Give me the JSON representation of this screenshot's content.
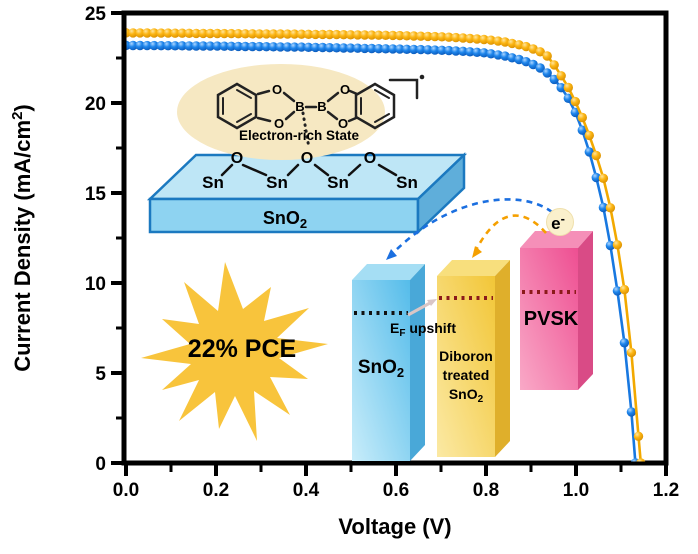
{
  "figure": {
    "description": "J-V curve of perovskite solar cells with diboron-treated SnO2 electron transport layer"
  },
  "chart_data": {
    "type": "line",
    "title": "",
    "xlabel": "Voltage (V)",
    "ylabel": "Current Density (mA/cm2)",
    "xlim": [
      0.0,
      1.2
    ],
    "ylim": [
      0,
      25
    ],
    "xticks": [
      0.0,
      0.2,
      0.4,
      0.6,
      0.8,
      1.0,
      1.2
    ],
    "xtick_labels": [
      "0.0",
      "0.2",
      "0.4",
      "0.6",
      "0.8",
      "1.0",
      "1.2"
    ],
    "x_minor_ticks": [
      0.1,
      0.3,
      0.5,
      0.7,
      0.9,
      1.1
    ],
    "yticks": [
      0,
      5,
      10,
      15,
      20,
      25
    ],
    "ytick_labels": [
      "0",
      "5",
      "10",
      "15",
      "20",
      "25"
    ],
    "y_minor_ticks": [
      2.5,
      7.5,
      12.5,
      17.5,
      22.5
    ],
    "grid": false,
    "legend": "none",
    "series": [
      {
        "name": "Pristine SnO2 (control, blue)",
        "line_color": "#1878E0",
        "gradient_id": "ballBlue",
        "marker_step_v": 0.0156,
        "jsc_mA_cm2": 23.2,
        "voc_V": 1.132,
        "points": [
          [
            0.0,
            23.2
          ],
          [
            0.1,
            23.18
          ],
          [
            0.2,
            23.16
          ],
          [
            0.3,
            23.13
          ],
          [
            0.4,
            23.1
          ],
          [
            0.5,
            23.05
          ],
          [
            0.6,
            23.0
          ],
          [
            0.65,
            22.97
          ],
          [
            0.7,
            22.93
          ],
          [
            0.75,
            22.87
          ],
          [
            0.8,
            22.78
          ],
          [
            0.84,
            22.62
          ],
          [
            0.88,
            22.38
          ],
          [
            0.9,
            22.2
          ],
          [
            0.92,
            21.95
          ],
          [
            0.94,
            21.6
          ],
          [
            0.96,
            21.1
          ],
          [
            0.98,
            20.4
          ],
          [
            1.0,
            19.4
          ],
          [
            1.02,
            18.1
          ],
          [
            1.04,
            16.4
          ],
          [
            1.06,
            14.3
          ],
          [
            1.08,
            11.6
          ],
          [
            1.1,
            8.2
          ],
          [
            1.11,
            6.2
          ],
          [
            1.12,
            3.8
          ],
          [
            1.128,
            1.4
          ],
          [
            1.132,
            0.0
          ]
        ]
      },
      {
        "name": "Diboron treated SnO2 (gold)",
        "line_color": "#F2A900",
        "gradient_id": "ballGold",
        "marker_step_v": 0.0156,
        "jsc_mA_cm2": 23.9,
        "voc_V": 1.144,
        "points": [
          [
            0.0,
            23.9
          ],
          [
            0.1,
            23.88
          ],
          [
            0.2,
            23.86
          ],
          [
            0.3,
            23.84
          ],
          [
            0.4,
            23.82
          ],
          [
            0.5,
            23.79
          ],
          [
            0.6,
            23.75
          ],
          [
            0.7,
            23.68
          ],
          [
            0.75,
            23.61
          ],
          [
            0.8,
            23.52
          ],
          [
            0.84,
            23.4
          ],
          [
            0.88,
            23.2
          ],
          [
            0.9,
            23.05
          ],
          [
            0.92,
            22.85
          ],
          [
            0.94,
            22.55
          ],
          [
            0.96,
            21.8
          ],
          [
            0.98,
            21.0
          ],
          [
            1.0,
            20.0
          ],
          [
            1.02,
            18.85
          ],
          [
            1.04,
            17.5
          ],
          [
            1.06,
            15.9
          ],
          [
            1.08,
            13.8
          ],
          [
            1.1,
            11.0
          ],
          [
            1.11,
            9.2
          ],
          [
            1.12,
            7.0
          ],
          [
            1.13,
            4.3
          ],
          [
            1.14,
            1.1
          ],
          [
            1.144,
            0.0
          ]
        ]
      }
    ]
  },
  "axis": {
    "ylabel_main": "Current Density (mA/cm",
    "ylabel_sup": "2",
    "ylabel_end": ")",
    "xlabel": "Voltage (V)"
  },
  "molecule_inset": {
    "state_label": "Electron-rich State",
    "state_color": "#FF1400",
    "boron_left": "B",
    "boron_right": "B",
    "oxygen": "O",
    "radical_bracket_dot": "•"
  },
  "surface_inset": {
    "sn_1": "Sn",
    "sn_2": "Sn",
    "sn_3": "Sn",
    "sn_4": "Sn",
    "o_1": "O",
    "o_2": "O",
    "o_3": "O",
    "slab_label_main": "SnO",
    "slab_label_sub": "2"
  },
  "pce_burst": {
    "label": "22% PCE",
    "fill": "#F8C43C",
    "text_color": "#FFFFFF"
  },
  "energy_diagram": {
    "bar_sno2_main": "SnO",
    "bar_sno2_sub": "2",
    "bar_diboron_line1": "Diboron",
    "bar_diboron_line2": "treated",
    "bar_diboron_line3_main": "SnO",
    "bar_diboron_line3_sub": "2",
    "bar_pvsk": "PVSK",
    "ef_e": "E",
    "ef_sub": "F",
    "ef_rest": " upshift",
    "electron_main": "e",
    "electron_sup": "-",
    "bar_colors": {
      "sno2": "#5FC0EA",
      "diboron": "#F3C93E",
      "pvsk": "#EF5E99"
    }
  }
}
